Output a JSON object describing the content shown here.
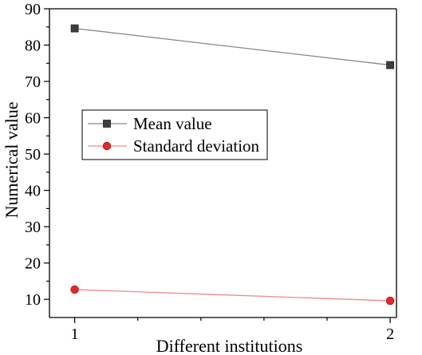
{
  "chart_data": {
    "type": "line",
    "xlabel": "Different institutions",
    "ylabel": "Numerical value",
    "x": [
      1,
      2
    ],
    "xticks": [
      "1",
      "2"
    ],
    "xlim": [
      0.92,
      2.02
    ],
    "ylim": [
      5,
      90
    ],
    "yticks": [
      "10",
      "20",
      "30",
      "40",
      "50",
      "60",
      "70",
      "80",
      "90"
    ],
    "grid": false,
    "legend_position": "middle-left",
    "series": [
      {
        "name": "Mean value",
        "values": [
          84.6,
          74.5
        ],
        "marker": "square",
        "color": "#3d3d3d",
        "line_color": "#888888"
      },
      {
        "name": "Standard deviation",
        "values": [
          12.7,
          9.6
        ],
        "marker": "circle",
        "color": "#e8262a",
        "line_color": "#f08a8a"
      }
    ]
  }
}
